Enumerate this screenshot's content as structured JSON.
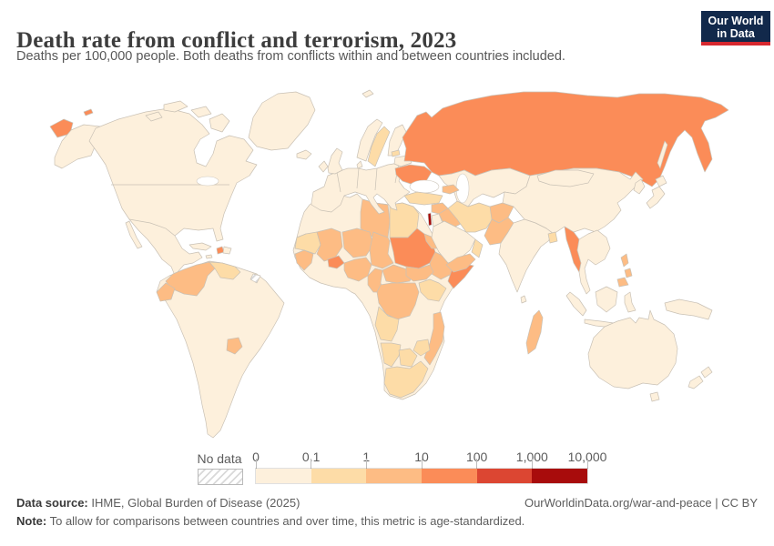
{
  "header": {
    "title": "Death rate from conflict and terrorism, 2023",
    "subtitle": "Deaths per 100,000 people. Both deaths from conflicts within and between countries included.",
    "logo": {
      "line1": "Our World",
      "line2": "in Data",
      "bg_color": "#12294B",
      "accent_color": "#D7282F"
    }
  },
  "chart_data": {
    "type": "choropleth-map",
    "title": "Death rate from conflict and terrorism, 2023",
    "unit": "Deaths per 100,000 people",
    "year": "2023",
    "scale": "log",
    "legend": {
      "no_data_label": "No data",
      "tick_labels": [
        "0",
        "0.1",
        "1",
        "10",
        "100",
        "1,000",
        "10,000"
      ],
      "bin_ranges": [
        "0–0.1",
        "0.1–1",
        "1–10",
        "10–100",
        "100–1,000",
        "1,000–10,000"
      ],
      "bin_colors": [
        "#FDF0DC",
        "#FDDCA7",
        "#FDBC84",
        "#FB8C58",
        "#DC4632",
        "#A80C0C"
      ]
    },
    "regions": {
      "chukotka-wrap": 4,
      "wrangel": 4,
      "alaska": 1,
      "north-america": 1,
      "baja": 1,
      "arctic-island-1": 1,
      "arctic-island-2": 1,
      "arctic-island-3": 1,
      "baffin": 1,
      "greenland": 1,
      "iceland": 1,
      "svalbard": 1,
      "central-america": 3,
      "cuba": 1,
      "jamaica": 1,
      "haiti": 4,
      "dominican-republic": 1,
      "south-america": 1,
      "colombia": 3,
      "ecuador": 3,
      "venezuela": 2,
      "french-guiana": "no-data",
      "paraguay": 3,
      "united-kingdom": 1,
      "ireland": 1,
      "norway": 1,
      "sweden": 2,
      "finland": 1,
      "denmark": 1,
      "mainland-europe": 1,
      "latvia": 2,
      "belarus": 1,
      "ukraine": 4,
      "russia": 4,
      "kazakhstan-central-asia": 1,
      "caucasus": 3,
      "turkey": 2,
      "syria": 3,
      "iraq": 3,
      "israel-palestine": 6,
      "jordan": 1,
      "saudi-arabia": 1,
      "yemen": 3,
      "oman": 2,
      "iran": 2,
      "afghanistan": 3,
      "pakistan": 3,
      "india": 1,
      "sri-lanka": 1,
      "bangladesh": 2,
      "china": 1,
      "mongolia": 1,
      "korea": 1,
      "japan": 1,
      "sakhalin": 1,
      "myanmar": 4,
      "indochina": 1,
      "philippines-luzon": 3,
      "philippines-visayas": 3,
      "philippines-mindanao": 3,
      "sumatra": 1,
      "java": 1,
      "borneo": 1,
      "sulawesi": 1,
      "new-guinea": 1,
      "australia": 1,
      "tasmania": 1,
      "new-zealand-north": 1,
      "new-zealand-south": 1,
      "africa": 1,
      "western-sahara": "no-data",
      "libya": 3,
      "egypt": 2,
      "mauritania": 2,
      "mali": 3,
      "burkina-faso": 4,
      "niger": 3,
      "chad": 3,
      "sudan": 4,
      "eritrea": 3,
      "ethiopia": 3,
      "somalia": 4,
      "senegal-guinea": 3,
      "nigeria": 3,
      "cameroon": 3,
      "central-african-republic": 3,
      "south-sudan": 3,
      "dr-congo": 3,
      "uganda-kenya": 2,
      "angola": 2,
      "mozambique": 3,
      "zimbabwe": 2,
      "namibia": 2,
      "botswana": 2,
      "south-africa": 2,
      "madagascar": 3
    }
  },
  "footer": {
    "source_label": "Data source:",
    "source_text": " IHME, Global Burden of Disease (2025)",
    "right_text": "OurWorldinData.org/war-and-peace | CC BY",
    "note_label": "Note:",
    "note_text": " To allow for comparisons between countries and over time, this metric is age-standardized."
  }
}
